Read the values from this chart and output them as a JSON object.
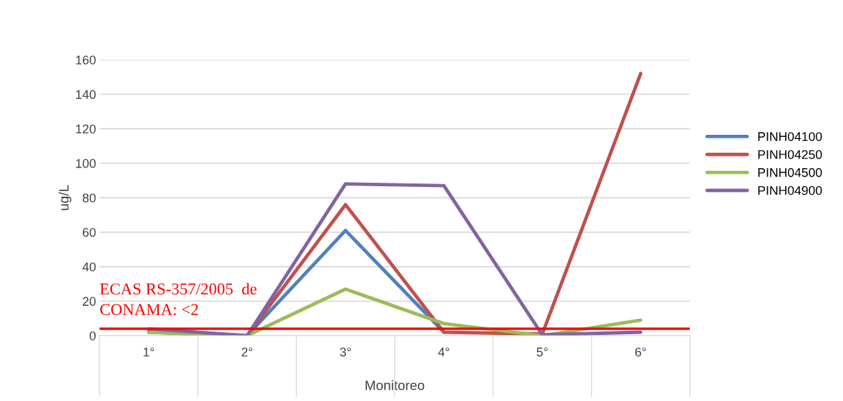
{
  "chart_data": {
    "type": "line",
    "xlabel": "Monitoreo",
    "ylabel": "ug/L",
    "categories": [
      "1°",
      "2°",
      "3°",
      "4°",
      "5°",
      "6°"
    ],
    "series": [
      {
        "name": "PINH04100",
        "color": "#4f81bd",
        "values": [
          2,
          0,
          61,
          2,
          null,
          null
        ]
      },
      {
        "name": "PINH04250",
        "color": "#c0504d",
        "values": [
          3,
          0,
          76,
          2,
          1,
          152
        ]
      },
      {
        "name": "PINH04500",
        "color": "#9bbb59",
        "values": [
          2,
          0,
          27,
          7,
          0,
          9
        ]
      },
      {
        "name": "PINH04900",
        "color": "#8064a2",
        "values": [
          4,
          0,
          88,
          87,
          0.5,
          2
        ]
      }
    ],
    "ylim": [
      0,
      160
    ],
    "yticks": [
      0,
      20,
      40,
      60,
      80,
      100,
      120,
      140,
      160
    ],
    "ref_lines": [
      {
        "axis": "y",
        "value": 4,
        "label": "ECAS RS-357/2005  de\nCONAMA: <2",
        "color": "#ff0000"
      }
    ],
    "grid": "y",
    "legend": "right",
    "marker": "none",
    "line_style": "solid"
  }
}
